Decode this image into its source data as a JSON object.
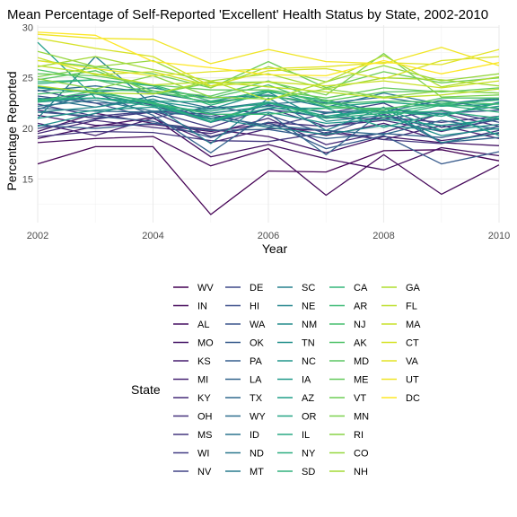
{
  "chart_data": {
    "type": "line",
    "title": "Mean Percentage of Self-Reported 'Excellent' Health Status by State, 2002-2010",
    "xlabel": "Year",
    "ylabel": "Percentage Reported",
    "x": [
      2002,
      2003,
      2004,
      2005,
      2006,
      2007,
      2008,
      2009,
      2010
    ],
    "xlim": [
      2002,
      2010
    ],
    "ylim": [
      10.7,
      30.2
    ],
    "x_ticks": [
      "2002",
      "2004",
      "2006",
      "2008",
      "2010"
    ],
    "y_ticks": [
      "15",
      "20",
      "25",
      "30"
    ],
    "grid": true,
    "legend_title": "State",
    "legend_position": "bottom",
    "palette": "viridis",
    "series": [
      {
        "name": "WV",
        "values": [
          16.5,
          18.2,
          18.2,
          11.5,
          15.8,
          15.7,
          17.8,
          17.9,
          16.8
        ]
      },
      {
        "name": "IN",
        "values": [
          18.6,
          19.0,
          19.2,
          16.3,
          18.0,
          13.4,
          17.4,
          13.5,
          16.4
        ]
      },
      {
        "name": "AL",
        "values": [
          19.0,
          20.2,
          21.1,
          17.2,
          18.4,
          17.0,
          15.9,
          18.1,
          17.3
        ]
      },
      {
        "name": "MO",
        "values": [
          19.7,
          21.5,
          20.5,
          19.9,
          19.2,
          17.6,
          19.2,
          18.6,
          18.3
        ]
      },
      {
        "name": "KS",
        "values": [
          21.3,
          20.3,
          20.4,
          19.7,
          20.5,
          19.3,
          20.5,
          18.8,
          19.5
        ]
      },
      {
        "name": "MI",
        "values": [
          20.5,
          19.3,
          21.0,
          18.6,
          20.0,
          19.8,
          18.9,
          20.3,
          19.0
        ]
      },
      {
        "name": "KY",
        "values": [
          19.5,
          20.8,
          20.1,
          19.5,
          21.0,
          18.4,
          19.6,
          21.5,
          20.2
        ]
      },
      {
        "name": "OH",
        "values": [
          21.8,
          21.0,
          21.6,
          19.2,
          20.6,
          20.2,
          20.8,
          19.7,
          20.9
        ]
      },
      {
        "name": "MS",
        "values": [
          19.2,
          19.7,
          19.6,
          18.8,
          18.7,
          19.6,
          18.9,
          18.5,
          19.8
        ]
      },
      {
        "name": "WI",
        "values": [
          22.4,
          21.2,
          21.7,
          20.1,
          22.0,
          20.2,
          21.1,
          20.6,
          21.2
        ]
      },
      {
        "name": "NV",
        "values": [
          20.0,
          20.9,
          21.7,
          21.4,
          20.1,
          21.5,
          22.5,
          20.1,
          21.0
        ]
      },
      {
        "name": "DE",
        "values": [
          22.9,
          23.4,
          22.3,
          20.6,
          21.9,
          21.1,
          20.9,
          21.8,
          20.6
        ]
      },
      {
        "name": "HI",
        "values": [
          23.8,
          22.5,
          21.0,
          22.2,
          21.3,
          19.5,
          21.4,
          19.8,
          20.9
        ]
      },
      {
        "name": "WA",
        "values": [
          23.2,
          22.5,
          22.5,
          20.9,
          22.3,
          21.6,
          21.6,
          21.5,
          21.8
        ]
      },
      {
        "name": "OK",
        "values": [
          21.6,
          21.2,
          20.7,
          19.1,
          20.6,
          18.0,
          19.3,
          16.5,
          17.7
        ]
      },
      {
        "name": "PA",
        "values": [
          20.3,
          20.0,
          20.5,
          19.8,
          19.9,
          19.0,
          19.5,
          19.1,
          20.2
        ]
      },
      {
        "name": "LA",
        "values": [
          21.9,
          23.5,
          21.3,
          17.6,
          21.5,
          17.4,
          21.7,
          18.6,
          19.1
        ]
      },
      {
        "name": "TX",
        "values": [
          22.0,
          21.7,
          21.6,
          21.2,
          20.3,
          19.8,
          19.4,
          20.8,
          19.9
        ]
      },
      {
        "name": "WY",
        "values": [
          23.7,
          24.2,
          23.5,
          22.6,
          23.2,
          22.5,
          23.1,
          22.2,
          22.9
        ]
      },
      {
        "name": "ID",
        "values": [
          23.0,
          22.1,
          23.2,
          22.0,
          22.4,
          22.8,
          21.6,
          22.8,
          21.9
        ]
      },
      {
        "name": "ND",
        "values": [
          22.2,
          22.8,
          21.7,
          21.9,
          22.6,
          21.5,
          22.0,
          21.2,
          22.6
        ]
      },
      {
        "name": "MT",
        "values": [
          24.1,
          23.6,
          24.0,
          23.0,
          23.3,
          22.1,
          23.5,
          22.4,
          23.0
        ]
      },
      {
        "name": "SC",
        "values": [
          21.0,
          27.1,
          22.3,
          18.5,
          23.0,
          19.8,
          22.1,
          18.6,
          19.6
        ]
      },
      {
        "name": "NE",
        "values": [
          22.6,
          23.0,
          22.5,
          21.5,
          22.2,
          21.0,
          22.0,
          21.4,
          22.2
        ]
      },
      {
        "name": "NM",
        "values": [
          21.6,
          22.1,
          22.9,
          21.0,
          20.1,
          19.4,
          20.3,
          19.8,
          20.4
        ]
      },
      {
        "name": "TN",
        "values": [
          20.2,
          21.5,
          22.7,
          21.9,
          23.6,
          20.7,
          21.3,
          19.3,
          20.0
        ]
      },
      {
        "name": "NC",
        "values": [
          21.0,
          21.8,
          22.1,
          20.9,
          21.6,
          20.5,
          20.9,
          20.3,
          20.9
        ]
      },
      {
        "name": "IA",
        "values": [
          22.8,
          23.0,
          22.5,
          20.6,
          22.5,
          21.2,
          22.0,
          19.8,
          21.2
        ]
      },
      {
        "name": "AZ",
        "values": [
          28.5,
          23.0,
          22.6,
          20.7,
          22.0,
          22.0,
          20.1,
          21.5,
          19.3
        ]
      },
      {
        "name": "OR",
        "values": [
          24.0,
          23.5,
          22.7,
          22.6,
          23.8,
          22.1,
          22.6,
          22.2,
          22.4
        ]
      },
      {
        "name": "IL",
        "values": [
          22.9,
          23.0,
          22.2,
          21.7,
          22.6,
          21.2,
          21.7,
          21.2,
          22.5
        ]
      },
      {
        "name": "NY",
        "values": [
          22.6,
          23.4,
          22.4,
          20.7,
          22.6,
          21.0,
          21.5,
          21.7,
          21.0
        ]
      },
      {
        "name": "SD",
        "values": [
          24.4,
          24.8,
          24.2,
          22.3,
          23.6,
          22.8,
          21.1,
          22.3,
          21.6
        ]
      },
      {
        "name": "CA",
        "values": [
          24.6,
          24.8,
          24.3,
          22.7,
          23.7,
          22.6,
          21.5,
          22.4,
          22.8
        ]
      },
      {
        "name": "AR",
        "values": [
          22.7,
          23.7,
          22.5,
          21.4,
          21.4,
          22.0,
          22.0,
          22.4,
          22.0
        ]
      },
      {
        "name": "NJ",
        "values": [
          23.4,
          23.8,
          23.7,
          22.5,
          23.2,
          22.4,
          22.7,
          22.6,
          22.4
        ]
      },
      {
        "name": "AK",
        "values": [
          25.8,
          24.8,
          23.5,
          23.0,
          24.3,
          22.2,
          21.8,
          23.0,
          23.0
        ]
      },
      {
        "name": "MD",
        "values": [
          24.8,
          25.7,
          23.7,
          23.2,
          24.7,
          22.7,
          23.6,
          23.7,
          23.5
        ]
      },
      {
        "name": "ME",
        "values": [
          25.4,
          25.2,
          24.3,
          23.8,
          23.8,
          23.0,
          24.0,
          23.6,
          24.0
        ]
      },
      {
        "name": "VT",
        "values": [
          26.7,
          26.1,
          25.4,
          24.0,
          26.6,
          24.0,
          25.6,
          24.5,
          25.0
        ]
      },
      {
        "name": "MN",
        "values": [
          25.1,
          26.0,
          23.4,
          24.5,
          24.6,
          23.3,
          27.4,
          23.1,
          23.3
        ]
      },
      {
        "name": "RI",
        "values": [
          24.9,
          23.9,
          25.2,
          23.1,
          22.9,
          23.9,
          23.1,
          23.7,
          23.5
        ]
      },
      {
        "name": "CO",
        "values": [
          27.6,
          26.1,
          26.7,
          24.0,
          26.1,
          24.6,
          26.2,
          24.7,
          25.4
        ]
      },
      {
        "name": "NH",
        "values": [
          26.1,
          27.1,
          25.8,
          24.7,
          25.4,
          23.9,
          25.0,
          24.8,
          24.2
        ]
      },
      {
        "name": "GA",
        "values": [
          24.2,
          23.5,
          23.4,
          24.7,
          22.8,
          24.6,
          27.2,
          24.1,
          25.1
        ]
      },
      {
        "name": "FL",
        "values": [
          26.2,
          25.4,
          24.3,
          24.6,
          24.1,
          23.6,
          23.0,
          23.3,
          23.9
        ]
      },
      {
        "name": "MA",
        "values": [
          27.0,
          25.3,
          25.6,
          24.2,
          24.6,
          24.2,
          24.7,
          24.0,
          24.7
        ]
      },
      {
        "name": "CT",
        "values": [
          28.9,
          27.9,
          27.1,
          24.2,
          25.7,
          25.9,
          24.9,
          26.7,
          27.1
        ]
      },
      {
        "name": "VA",
        "values": [
          26.7,
          25.9,
          25.2,
          25.6,
          25.9,
          26.1,
          26.5,
          26.3,
          27.8
        ]
      },
      {
        "name": "UT",
        "values": [
          29.3,
          28.9,
          28.8,
          26.4,
          27.8,
          26.6,
          26.4,
          28.0,
          26.2
        ]
      },
      {
        "name": "DC",
        "values": [
          29.5,
          29.2,
          26.6,
          26.0,
          25.3,
          25.2,
          26.7,
          25.4,
          26.5
        ]
      }
    ]
  }
}
